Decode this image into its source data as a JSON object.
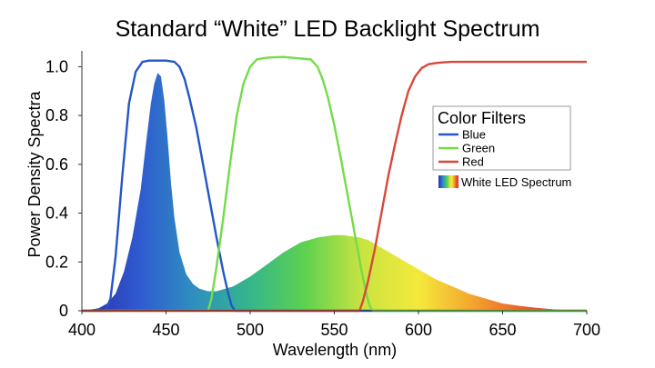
{
  "chart_data": {
    "type": "area",
    "title": "Standard “White” LED Backlight Spectrum",
    "xlabel": "Wavelength (nm)",
    "ylabel": "Power Density Spectra",
    "xlim": [
      400,
      700
    ],
    "ylim": [
      0,
      1.05
    ],
    "x_ticks": [
      "400",
      "450",
      "500",
      "550",
      "600",
      "650",
      "700"
    ],
    "y_ticks": [
      "0",
      "0.2",
      "0.4",
      "0.6",
      "0.8",
      "1.0"
    ],
    "grid": false,
    "legend": {
      "title": "Color Filters",
      "placement": "right",
      "spectrum_label": "White LED Spectrum"
    },
    "series": [
      {
        "name": "Blue",
        "kind": "line",
        "color": "#2456c8",
        "x": [
          400,
          414,
          417,
          420,
          424,
          428,
          432,
          436,
          440,
          450,
          455,
          458,
          461,
          464,
          468,
          472,
          476,
          480,
          484,
          487,
          489,
          491,
          700
        ],
        "y": [
          0,
          0,
          0.05,
          0.22,
          0.55,
          0.85,
          0.98,
          1.02,
          1.025,
          1.025,
          1.02,
          1.0,
          0.95,
          0.87,
          0.75,
          0.6,
          0.45,
          0.3,
          0.16,
          0.07,
          0.02,
          0,
          0
        ]
      },
      {
        "name": "Green",
        "kind": "line",
        "color": "#74dc4a",
        "x": [
          400,
          475,
          477,
          480,
          484,
          488,
          492,
          496,
          500,
          504,
          508,
          512,
          520,
          528,
          536,
          540,
          543,
          546,
          550,
          554,
          558,
          562,
          566,
          569,
          571,
          573,
          700
        ],
        "y": [
          0,
          0,
          0.05,
          0.18,
          0.38,
          0.6,
          0.8,
          0.93,
          1.0,
          1.03,
          1.035,
          1.038,
          1.04,
          1.035,
          1.03,
          1.0,
          0.95,
          0.88,
          0.76,
          0.62,
          0.47,
          0.32,
          0.17,
          0.07,
          0.02,
          0,
          0
        ]
      },
      {
        "name": "Red",
        "kind": "line",
        "color": "#d8483a",
        "x": [
          400,
          565,
          567,
          570,
          574,
          578,
          582,
          586,
          590,
          594,
          598,
          602,
          606,
          610,
          615,
          620,
          630,
          650,
          680,
          700
        ],
        "y": [
          0,
          0,
          0.04,
          0.12,
          0.25,
          0.4,
          0.55,
          0.68,
          0.8,
          0.9,
          0.96,
          0.995,
          1.01,
          1.015,
          1.018,
          1.02,
          1.02,
          1.02,
          1.02,
          1.02
        ]
      },
      {
        "name": "White LED Spectrum",
        "kind": "area",
        "x": [
          400,
          410,
          415,
          420,
          425,
          430,
          435,
          438,
          441,
          443,
          445,
          447,
          449,
          451,
          453,
          455,
          458,
          462,
          466,
          470,
          475,
          480,
          485,
          490,
          500,
          510,
          520,
          530,
          540,
          550,
          555,
          560,
          565,
          570,
          575,
          580,
          590,
          600,
          610,
          620,
          630,
          640,
          650,
          660,
          670,
          680,
          690,
          695,
          700
        ],
        "y": [
          0,
          0.01,
          0.03,
          0.07,
          0.16,
          0.3,
          0.5,
          0.68,
          0.85,
          0.93,
          0.975,
          0.96,
          0.86,
          0.7,
          0.52,
          0.38,
          0.24,
          0.15,
          0.11,
          0.09,
          0.08,
          0.08,
          0.09,
          0.1,
          0.14,
          0.19,
          0.24,
          0.28,
          0.3,
          0.31,
          0.31,
          0.305,
          0.3,
          0.29,
          0.27,
          0.25,
          0.21,
          0.17,
          0.13,
          0.1,
          0.07,
          0.05,
          0.03,
          0.02,
          0.012,
          0.006,
          0.003,
          0.001,
          0
        ]
      }
    ]
  },
  "colors": {
    "spectrum_gradient": [
      "#2b2fa8",
      "#2f59d0",
      "#2f8fc0",
      "#35b68a",
      "#5fd24e",
      "#c9e441",
      "#f5e93b",
      "#f4a22f",
      "#e8552a",
      "#d8342a"
    ]
  }
}
